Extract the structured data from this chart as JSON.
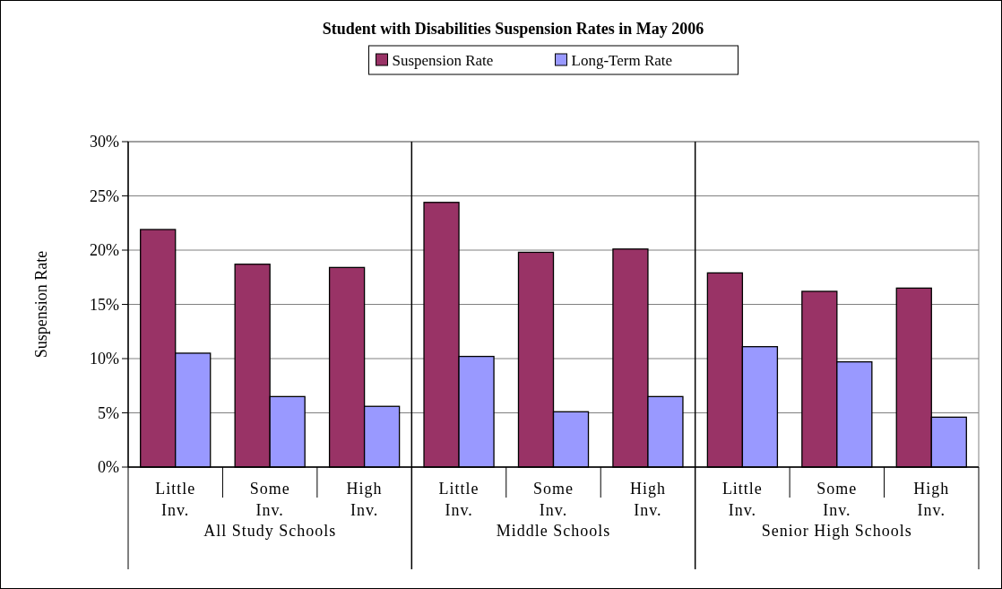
{
  "chart_data": {
    "type": "bar",
    "title": "Student with Disabilities Suspension Rates in May 2006",
    "ylabel": "Suspension Rate",
    "categories": [
      "Little Inv.",
      "Some Inv.",
      "High Inv.",
      "Little Inv.",
      "Some Inv.",
      "High Inv.",
      "Little Inv.",
      "Some Inv.",
      "High Inv."
    ],
    "annotations": [
      "All Study Schools",
      "Middle Schools",
      "Senior High Schools"
    ],
    "series": [
      {
        "name": "Suspension Rate",
        "color": "#993366",
        "values": [
          21.9,
          18.7,
          18.4,
          24.4,
          19.8,
          20.1,
          17.9,
          16.2,
          16.5
        ]
      },
      {
        "name": "Long-Term Rate",
        "color": "#9999ff",
        "values": [
          10.5,
          6.5,
          5.6,
          10.2,
          5.1,
          6.5,
          11.1,
          9.7,
          4.6
        ]
      }
    ],
    "ylim": [
      0,
      30
    ],
    "yticks": [
      {
        "value": 0,
        "label": "0%"
      },
      {
        "value": 5,
        "label": "5%"
      },
      {
        "value": 10,
        "label": "10%"
      },
      {
        "value": 15,
        "label": "15%"
      },
      {
        "value": 20,
        "label": "20%"
      },
      {
        "value": 25,
        "label": "25%"
      },
      {
        "value": 30,
        "label": "30%"
      }
    ],
    "grid": "y",
    "legend": "top"
  }
}
